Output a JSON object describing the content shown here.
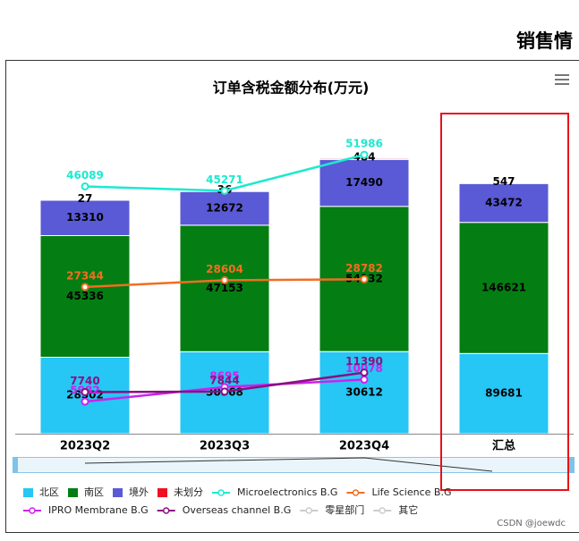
{
  "header": "销售情",
  "footer": "CSDN @joewdc",
  "chart_data": {
    "type": "stacked_bar_line",
    "title": "订单含税金额分布(万元)",
    "categories": [
      "2023Q2",
      "2023Q3",
      "2023Q4",
      "汇总"
    ],
    "ylim": [
      0,
      125000
    ],
    "summary_ylim": [
      0,
      375000
    ],
    "y2lim": [
      0,
      62500
    ],
    "series": [
      {
        "name": "北区",
        "color": "#26c6f5",
        "values": [
          28502,
          30568,
          30612,
          89681
        ]
      },
      {
        "name": "南区",
        "color": "#047e12",
        "values": [
          45336,
          47153,
          54132,
          146621
        ]
      },
      {
        "name": "境外",
        "color": "#5a5ad6",
        "values": [
          13310,
          12672,
          17490,
          43472
        ]
      },
      {
        "name": "未划分",
        "color": "#ee1122",
        "values": [
          27,
          36,
          484,
          547
        ]
      }
    ],
    "line_series": [
      {
        "name": "Microelectronics B.G",
        "color": "#1de9d0",
        "axis": "y2",
        "values": [
          46089,
          45271,
          51986,
          null
        ]
      },
      {
        "name": "Life Science B.G",
        "color": "#f26d21",
        "axis": "y2",
        "values": [
          27344,
          28604,
          28782,
          null
        ]
      },
      {
        "name": "IPRO Membrane B.G",
        "color": "#cc22ee",
        "axis": "y2",
        "values": [
          5982,
          8695,
          10078,
          null
        ]
      },
      {
        "name": "Overseas channel B.G",
        "color": "#8a1180",
        "axis": "y2",
        "values": [
          7740,
          7844,
          11390,
          null
        ]
      }
    ],
    "legend_disabled": [
      "零星部门",
      "其它"
    ]
  }
}
